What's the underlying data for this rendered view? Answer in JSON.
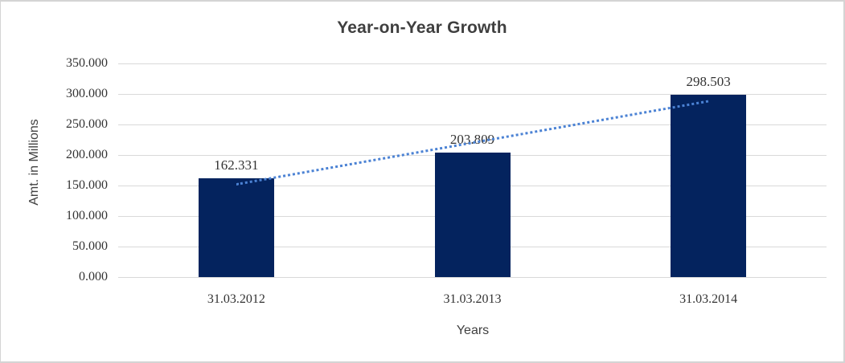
{
  "frame": {
    "background": "#ffffff",
    "border_color": "#d4d4d4"
  },
  "chart_data": {
    "type": "bar",
    "title": "Year-on-Year Growth",
    "xlabel": "Years",
    "ylabel": "Amt. in Millions",
    "categories": [
      "31.03.2012",
      "31.03.2013",
      "31.03.2014"
    ],
    "values": [
      162.331,
      203.809,
      298.503
    ],
    "value_labels": [
      "162.331",
      "203.809",
      "298.503"
    ],
    "y_ticks": [
      "0.000",
      "50.000",
      "100.000",
      "150.000",
      "200.000",
      "250.000",
      "300.000",
      "350.000"
    ],
    "ylim": [
      0,
      350
    ],
    "grid": true,
    "legend": "none",
    "trendline": {
      "type": "linear",
      "start_value": 153.5,
      "end_value": 289.7,
      "style": "dotted"
    },
    "colors": {
      "bar": "#04235e",
      "gridline": "#d9d9d9",
      "trendline": "#4b82d4",
      "title_text": "#3f3f3f",
      "tick_text": "#333333",
      "axis_title_text": "#404040"
    }
  }
}
